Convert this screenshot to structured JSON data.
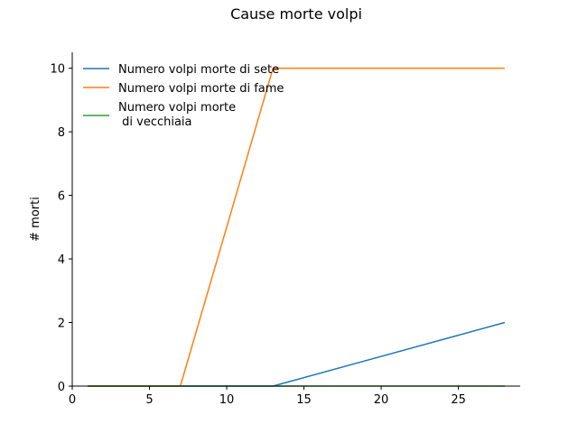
{
  "chart_data": {
    "type": "line",
    "title": "Cause morte volpi",
    "xlabel": "",
    "ylabel": "# morti",
    "xlim": [
      0,
      29
    ],
    "ylim": [
      0,
      10.5
    ],
    "xticks": [
      0,
      5,
      10,
      15,
      20,
      25
    ],
    "yticks": [
      0,
      2,
      4,
      6,
      8,
      10
    ],
    "grid": false,
    "legend_position": "top-left",
    "series": [
      {
        "name": "Numero volpi morte di sete",
        "color": "#1f77b4",
        "points": [
          [
            1,
            0
          ],
          [
            13,
            0
          ],
          [
            28,
            2
          ]
        ]
      },
      {
        "name": "Numero volpi morte di fame",
        "color": "#ff7f0e",
        "points": [
          [
            1,
            0
          ],
          [
            7,
            0
          ],
          [
            13,
            10
          ],
          [
            28,
            10
          ]
        ]
      },
      {
        "name": "Numero volpi morte\n di vecchiaia",
        "color": "#2ca02c",
        "points": [
          [
            1,
            0
          ],
          [
            28,
            0
          ]
        ]
      }
    ]
  }
}
